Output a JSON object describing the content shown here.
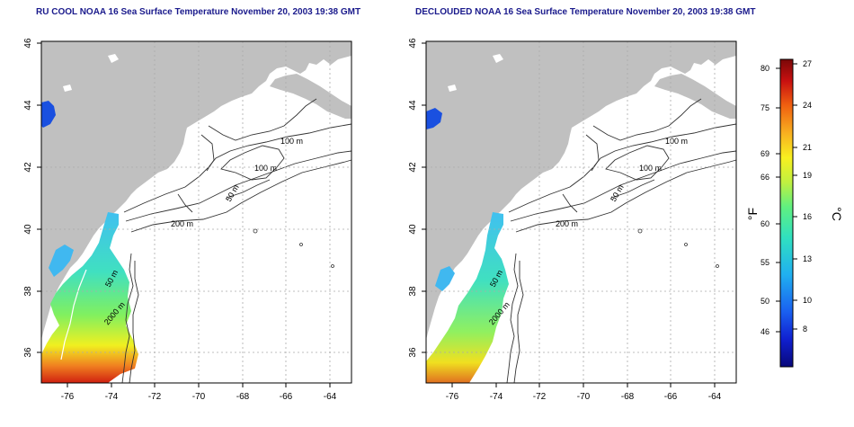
{
  "panels": [
    {
      "title": "RU COOL NOAA 16 Sea Surface Temperature November 20, 2003 19:38 GMT"
    },
    {
      "title": "DECLOUDED NOAA 16 Sea Surface Temperature November 20, 2003 19:38 GMT"
    }
  ],
  "axes": {
    "lon_ticks": [
      "-76",
      "-74",
      "-72",
      "-70",
      "-68",
      "-66",
      "-64"
    ],
    "lat_ticks": [
      "36",
      "38",
      "40",
      "42",
      "44",
      "46"
    ]
  },
  "contour_labels": [
    "100 m",
    "100 m",
    "50 m",
    "200 m",
    "50 m",
    "2000 m"
  ],
  "colorbar": {
    "fahrenheit_unit": "°F",
    "celsius_unit": "°C",
    "fahrenheit_ticks": [
      "80",
      "75",
      "69",
      "66",
      "60",
      "55",
      "50",
      "46"
    ],
    "celsius_ticks": [
      "27",
      "24",
      "21",
      "19",
      "16",
      "13",
      "10",
      "8"
    ],
    "colors": [
      "#08087a",
      "#1020d0",
      "#1a60f0",
      "#20b0f0",
      "#30e0c0",
      "#60f080",
      "#c0f040",
      "#f8f020",
      "#f8b020",
      "#f06010",
      "#c81010",
      "#7a0808"
    ]
  },
  "colors": {
    "title": "#1a1a8c",
    "land": "#c0c0c0",
    "contour": "#333333"
  }
}
